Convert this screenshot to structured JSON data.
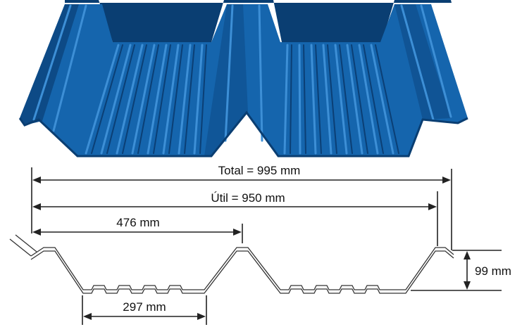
{
  "colors": {
    "sheet_main": "#1565ad",
    "sheet_dark": "#0d4a86",
    "sheet_light": "#3d8fd6",
    "sheet_top": "#0a3e72",
    "line": "#222222"
  },
  "dimensions": {
    "total": "Total = 995 mm",
    "useful": "Útil = 950 mm",
    "rib_spacing": "476 mm",
    "valley_width": "297 mm",
    "height": "99 mm"
  }
}
